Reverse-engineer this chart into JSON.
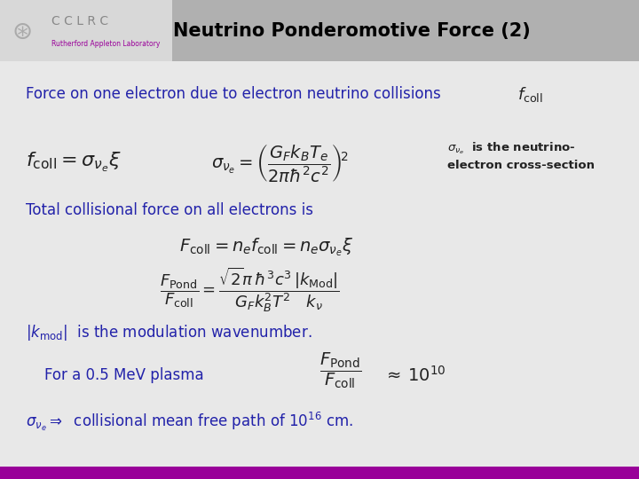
{
  "title": "Neutrino Ponderomotive Force (2)",
  "title_bg_color": "#c0c0c0",
  "title_text_color": "#000000",
  "body_bg_color": "#e8e8e8",
  "bottom_bar_color": "#990099",
  "blue_text_color": "#2222aa",
  "black_text_color": "#000000",
  "dark_text_color": "#222222",
  "line1": "Force on one electron due to electron neutrino collisions",
  "annotation": "$\\sigma_{\\nu_e}$  is the neutrino-\nelectron cross-section"
}
